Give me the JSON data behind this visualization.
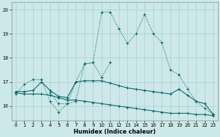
{
  "xlabel": "Humidex (Indice chaleur)",
  "bg_color": "#cce8e8",
  "line_color": "#006666",
  "grid_color": "#aacccc",
  "xlim": [
    -0.5,
    23.5
  ],
  "ylim": [
    15.4,
    20.3
  ],
  "yticks": [
    16,
    17,
    18,
    19,
    20
  ],
  "xticks": [
    0,
    1,
    2,
    3,
    4,
    5,
    6,
    7,
    8,
    9,
    10,
    11,
    12,
    13,
    14,
    15,
    16,
    17,
    18,
    19,
    20,
    21,
    22,
    23
  ],
  "line1_x": [
    0,
    1,
    2,
    3,
    4,
    5,
    6,
    7,
    8,
    9,
    10,
    11,
    12,
    13,
    14,
    15,
    16,
    17,
    18,
    19,
    20,
    21,
    22,
    23
  ],
  "line1_y": [
    16.5,
    16.9,
    17.1,
    17.1,
    16.2,
    15.75,
    16.1,
    16.2,
    17.75,
    17.8,
    19.9,
    19.9,
    19.2,
    18.6,
    19.0,
    19.8,
    19.0,
    18.65,
    17.5,
    17.3,
    16.7,
    16.2,
    15.9,
    15.65
  ],
  "line2_x": [
    4,
    5,
    6,
    7,
    8,
    9,
    10,
    11
  ],
  "line2_y": [
    16.55,
    16.1,
    16.1,
    17.0,
    17.75,
    17.8,
    17.2,
    17.8
  ],
  "line3_x": [
    0,
    1,
    2,
    3,
    4,
    5,
    6,
    7,
    8,
    9,
    10,
    11,
    12,
    13,
    14,
    15,
    16,
    17,
    18,
    19,
    20,
    21,
    22,
    23
  ],
  "line3_y": [
    16.6,
    16.6,
    16.65,
    17.0,
    16.65,
    16.4,
    16.35,
    17.0,
    17.05,
    17.05,
    17.05,
    16.95,
    16.85,
    16.75,
    16.7,
    16.65,
    16.6,
    16.55,
    16.5,
    16.7,
    16.45,
    16.2,
    16.1,
    15.65
  ],
  "line4_x": [
    0,
    1,
    2,
    3,
    4,
    5,
    6,
    7,
    8,
    9,
    10,
    11,
    12,
    13,
    14,
    15,
    16,
    17,
    18,
    19,
    20,
    21,
    22,
    23
  ],
  "line4_y": [
    16.55,
    16.5,
    16.5,
    16.5,
    16.45,
    16.35,
    16.25,
    16.25,
    16.2,
    16.15,
    16.1,
    16.05,
    16.0,
    15.95,
    15.9,
    15.85,
    15.8,
    15.75,
    15.7,
    15.7,
    15.7,
    15.65,
    15.65,
    15.6
  ]
}
